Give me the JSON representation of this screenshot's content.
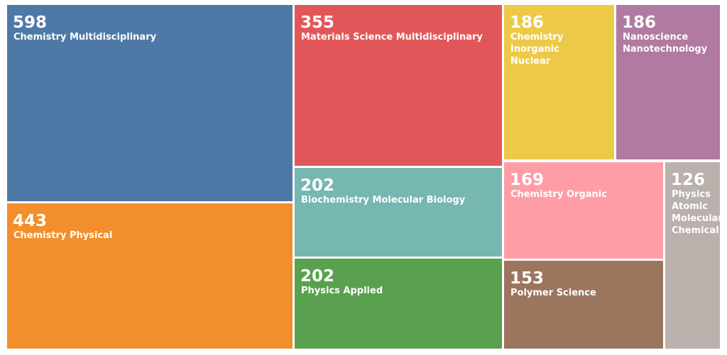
{
  "chart_data": {
    "type": "treemap",
    "items": [
      {
        "label": "Chemistry Multidisciplinary",
        "value": 598,
        "color": "#4e79a7"
      },
      {
        "label": "Chemistry Physical",
        "value": 443,
        "color": "#f28e2b"
      },
      {
        "label": "Materials Science Multidisciplinary",
        "value": 355,
        "color": "#e15759"
      },
      {
        "label": "Biochemistry Molecular Biology",
        "value": 202,
        "color": "#76b7b2"
      },
      {
        "label": "Physics Applied",
        "value": 202,
        "color": "#59a14f"
      },
      {
        "label": "Chemistry Inorganic\nNuclear",
        "value": 186,
        "color": "#edc948"
      },
      {
        "label": "Nanoscience\nNanotechnology",
        "value": 186,
        "color": "#b07aa1"
      },
      {
        "label": "Chemistry Organic",
        "value": 169,
        "color": "#ff9da7"
      },
      {
        "label": "Polymer Science",
        "value": 153,
        "color": "#9c755f"
      },
      {
        "label": "Physics\nAtomic\nMolecular\nChemical",
        "value": 126,
        "color": "#bab0ac"
      }
    ]
  }
}
